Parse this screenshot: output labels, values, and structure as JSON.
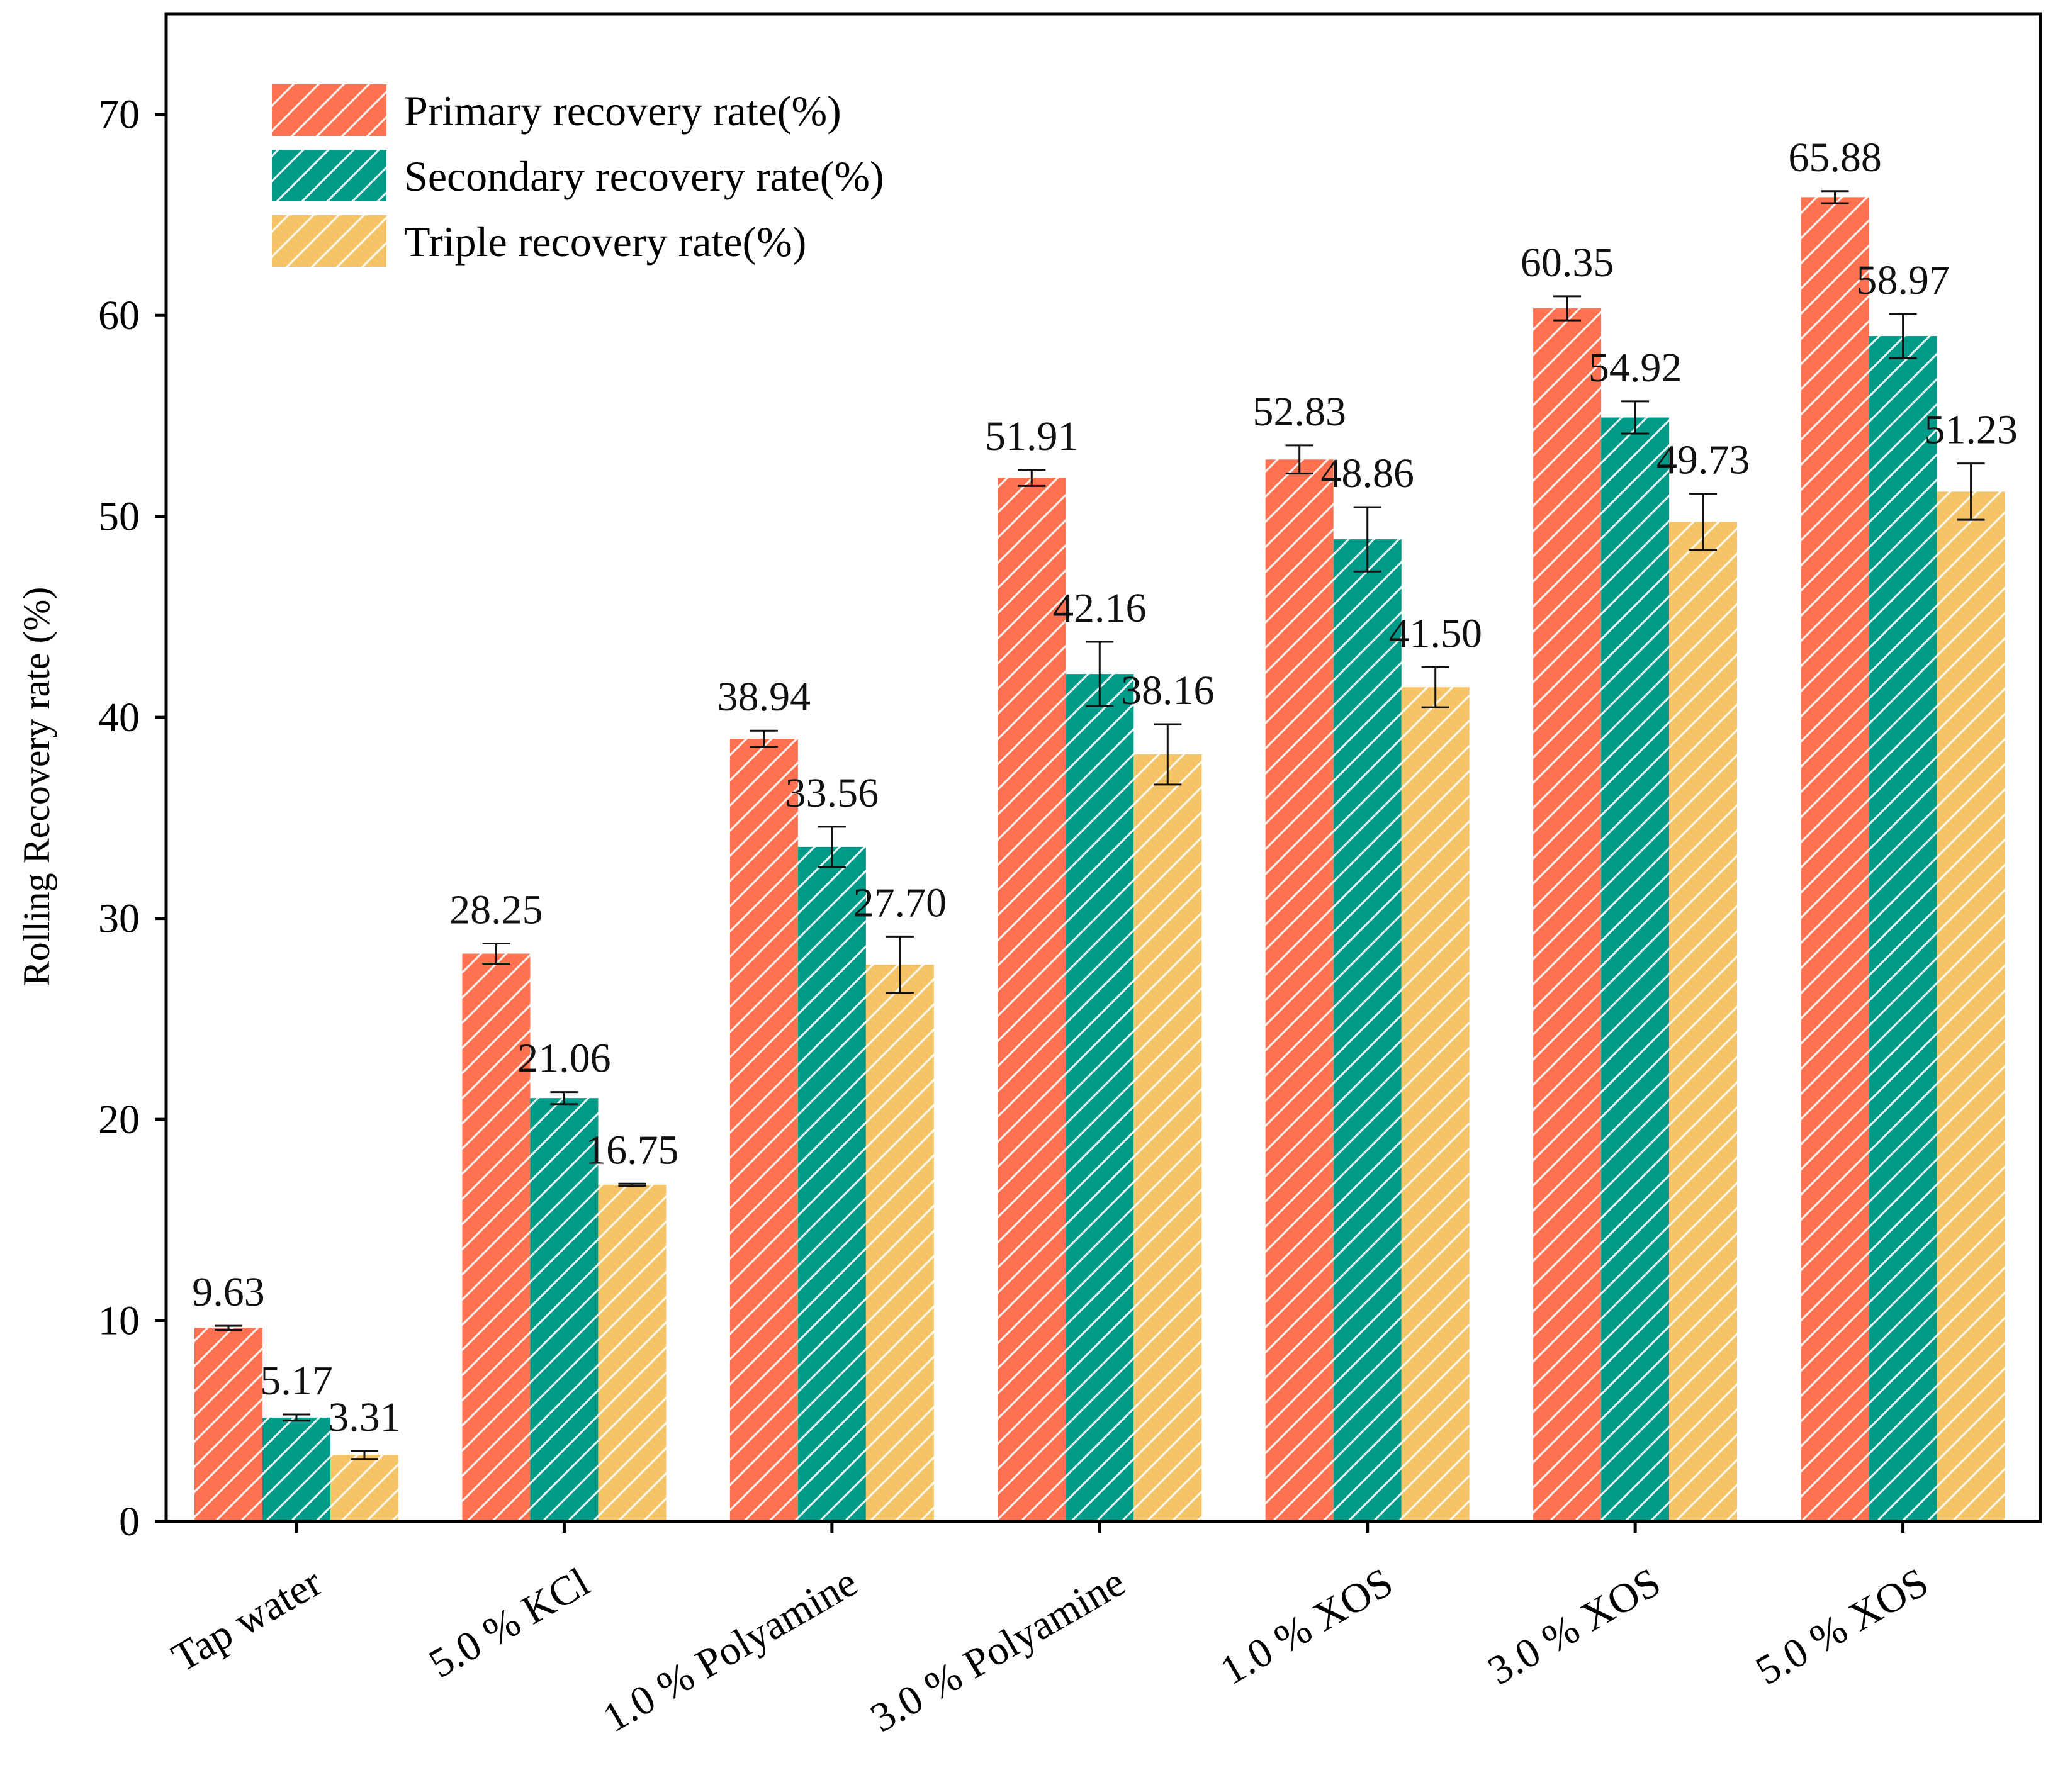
{
  "chart_data": {
    "type": "bar",
    "title": "",
    "xlabel": "",
    "ylabel": "Rolling Recovery rate (%)",
    "ylim": [
      0,
      75
    ],
    "yticks": [
      "0",
      "10",
      "20",
      "30",
      "40",
      "50",
      "60",
      "70"
    ],
    "ytick_values": [
      0,
      10,
      20,
      30,
      40,
      50,
      60,
      70
    ],
    "categories": [
      "Tap water",
      "5.0 % KCl",
      "1.0 % Polyamine",
      "3.0 % Polyamine",
      "1.0 % XOS",
      "3.0 % XOS",
      "5.0 % XOS"
    ],
    "legend_position": "top-left",
    "hatch": "diagonal",
    "series": [
      {
        "name": "Primary recovery rate(%)",
        "color": "#FF7150",
        "values": [
          9.63,
          28.25,
          38.94,
          51.91,
          52.83,
          60.35,
          65.88
        ],
        "labels": [
          "9.63",
          "28.25",
          "38.94",
          "51.91",
          "52.83",
          "60.35",
          "65.88"
        ],
        "errors": [
          0.1,
          0.5,
          0.4,
          0.4,
          0.7,
          0.6,
          0.3
        ]
      },
      {
        "name": "Secondary recovery rate(%)",
        "color": "#009A88",
        "values": [
          5.17,
          21.06,
          33.56,
          42.16,
          48.86,
          54.92,
          58.97
        ],
        "labels": [
          "5.17",
          "21.06",
          "33.56",
          "42.16",
          "48.86",
          "54.92",
          "58.97"
        ],
        "errors": [
          0.15,
          0.3,
          1.0,
          1.6,
          1.6,
          0.8,
          1.1
        ]
      },
      {
        "name": "Triple recovery rate(%)",
        "color": "#F5C468",
        "values": [
          3.31,
          16.75,
          27.7,
          38.16,
          41.5,
          49.73,
          51.23
        ],
        "labels": [
          "3.31",
          "16.75",
          "27.70",
          "38.16",
          "41.50",
          "49.73",
          "51.23"
        ],
        "errors": [
          0.2,
          0.05,
          1.4,
          1.5,
          1.0,
          1.4,
          1.4
        ]
      }
    ]
  }
}
